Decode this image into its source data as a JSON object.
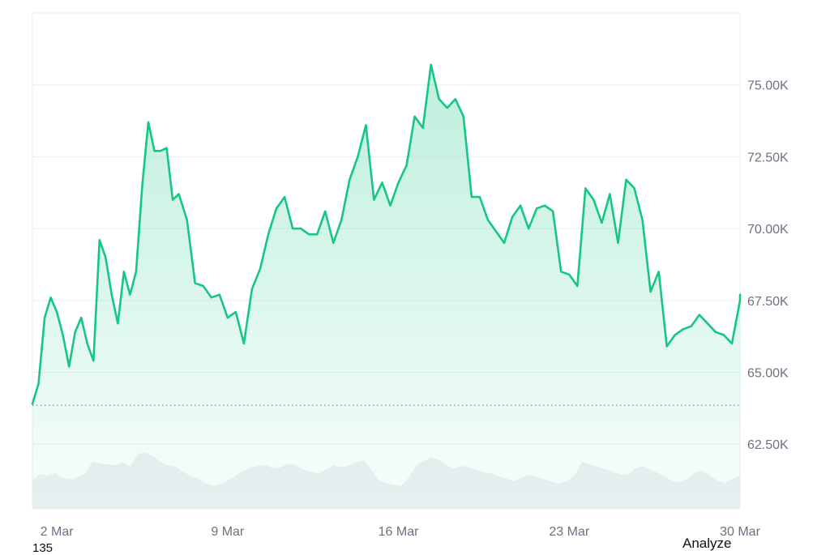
{
  "chart_data": {
    "type": "area",
    "title": "",
    "xlabel": "",
    "ylabel": "",
    "x_ticks": [
      "2 Mar",
      "9 Mar",
      "16 Mar",
      "23 Mar",
      "30 Mar"
    ],
    "y_ticks": [
      "75.00K",
      "72.50K",
      "70.00K",
      "67.50K",
      "65.00K",
      "62.50K"
    ],
    "y_tick_values": [
      75000,
      72500,
      70000,
      67500,
      65000,
      62500
    ],
    "ylim": [
      60250,
      77500
    ],
    "xlim": [
      "2024-03-01",
      "2024-03-30"
    ],
    "grid": true,
    "baseline": 63850,
    "series": [
      {
        "color": "#16c784",
        "x": [
          "2024-03-01",
          "2024-03-01",
          "2024-03-01",
          "2024-03-01",
          "2024-03-02",
          "2024-03-02",
          "2024-03-02",
          "2024-03-02",
          "2024-03-03",
          "2024-03-03",
          "2024-03-03",
          "2024-03-03",
          "2024-03-04",
          "2024-03-04",
          "2024-03-04",
          "2024-03-04",
          "2024-03-05",
          "2024-03-05",
          "2024-03-05",
          "2024-03-05",
          "2024-03-06",
          "2024-03-06",
          "2024-03-06",
          "2024-03-06",
          "2024-03-07",
          "2024-03-07",
          "2024-03-07",
          "2024-03-08",
          "2024-03-08",
          "2024-03-08",
          "2024-03-09",
          "2024-03-09",
          "2024-03-09",
          "2024-03-10",
          "2024-03-10",
          "2024-03-10",
          "2024-03-11",
          "2024-03-11",
          "2024-03-11",
          "2024-03-12",
          "2024-03-12",
          "2024-03-12",
          "2024-03-13",
          "2024-03-13",
          "2024-03-13",
          "2024-03-14",
          "2024-03-14",
          "2024-03-14",
          "2024-03-15",
          "2024-03-15",
          "2024-03-15",
          "2024-03-16",
          "2024-03-16",
          "2024-03-16",
          "2024-03-17",
          "2024-03-17",
          "2024-03-17",
          "2024-03-18",
          "2024-03-18",
          "2024-03-18",
          "2024-03-19",
          "2024-03-19",
          "2024-03-19",
          "2024-03-20",
          "2024-03-20",
          "2024-03-20",
          "2024-03-21",
          "2024-03-21",
          "2024-03-21",
          "2024-03-22",
          "2024-03-22",
          "2024-03-22",
          "2024-03-23",
          "2024-03-23",
          "2024-03-23",
          "2024-03-24",
          "2024-03-24",
          "2024-03-24",
          "2024-03-25",
          "2024-03-25",
          "2024-03-25",
          "2024-03-26",
          "2024-03-26",
          "2024-03-26",
          "2024-03-27",
          "2024-03-27",
          "2024-03-27",
          "2024-03-28",
          "2024-03-28",
          "2024-03-28",
          "2024-03-29",
          "2024-03-29",
          "2024-03-29",
          "2024-03-30",
          "2024-03-30"
        ],
        "y": [
          63900,
          64600,
          66900,
          67600,
          67100,
          66300,
          65200,
          66400,
          66900,
          66000,
          65400,
          69600,
          69000,
          67700,
          66700,
          68500,
          67700,
          68500,
          71500,
          73700,
          72700,
          72700,
          72800,
          71000,
          71200,
          70300,
          68100,
          68000,
          67600,
          67700,
          66900,
          67100,
          66000,
          67900,
          68600,
          69800,
          70700,
          71100,
          70000,
          70000,
          69800,
          69800,
          70600,
          69500,
          70300,
          71700,
          72500,
          73600,
          71000,
          71600,
          70800,
          71600,
          72200,
          73900,
          73500,
          75700,
          74500,
          74200,
          74500,
          73900,
          71100,
          71100,
          70300,
          69900,
          69500,
          70400,
          70800,
          70000,
          70700,
          70800,
          70600,
          68500,
          68400,
          68000,
          71400,
          71000,
          70200,
          71200,
          69500,
          71700,
          71400,
          70300,
          67800,
          68500,
          65900,
          66300,
          66500,
          66600,
          67000,
          66700,
          66400,
          66300,
          66000,
          67500,
          67700
        ]
      }
    ],
    "volume_series": {
      "color": "#eef0f3",
      "values": [
        38,
        46,
        44,
        48,
        41,
        39,
        42,
        47,
        63,
        60,
        59,
        58,
        62,
        56,
        72,
        75,
        70,
        62,
        58,
        56,
        49,
        44,
        40,
        34,
        31,
        33,
        38,
        44,
        50,
        55,
        57,
        58,
        54,
        55,
        60,
        58,
        52,
        49,
        47,
        52,
        58,
        55,
        57,
        62,
        64,
        52,
        38,
        34,
        32,
        30,
        42,
        58,
        63,
        68,
        65,
        58,
        53,
        57,
        55,
        52,
        48,
        47,
        43,
        40,
        37,
        41,
        45,
        42,
        39,
        36,
        33,
        37,
        44,
        62,
        59,
        56,
        53,
        50,
        46,
        45,
        53,
        57,
        52,
        48,
        43,
        37,
        36,
        40,
        48,
        51,
        44,
        38,
        34,
        40,
        44
      ],
      "max": 100
    }
  },
  "footer": {
    "left_text": "135",
    "right_text": "Analyze"
  }
}
